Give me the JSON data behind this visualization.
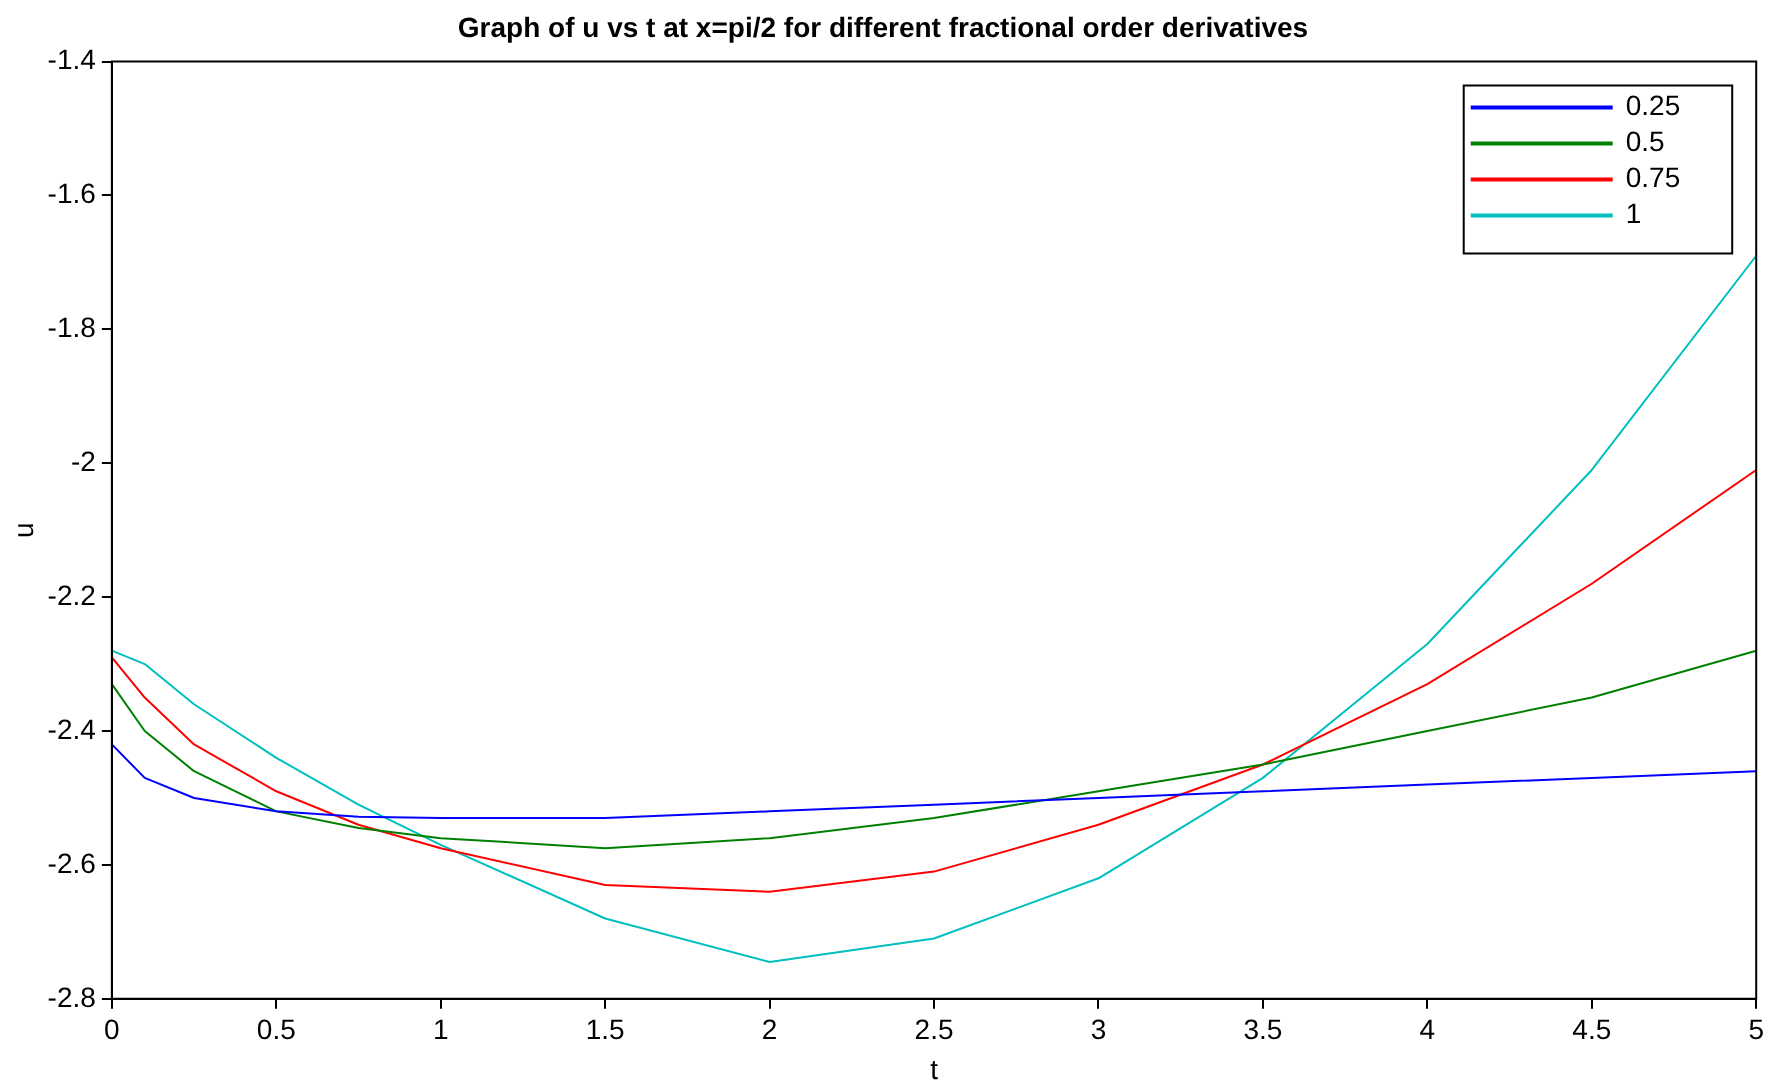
{
  "chart_data": {
    "type": "line",
    "title": "Graph of u vs t at x=pi/2 for different fractional order derivatives",
    "xlabel": "t",
    "ylabel": "u",
    "x": [
      0,
      0.1,
      0.25,
      0.5,
      0.75,
      1,
      1.5,
      2,
      2.5,
      3,
      3.5,
      4,
      4.5,
      5
    ],
    "series": [
      {
        "name": "0.25",
        "color": "#0000ff",
        "values": [
          -2.42,
          -2.47,
          -2.5,
          -2.52,
          -2.528,
          -2.53,
          -2.53,
          -2.52,
          -2.51,
          -2.5,
          -2.49,
          -2.48,
          -2.47,
          -2.46
        ]
      },
      {
        "name": "0.5",
        "color": "#008000",
        "values": [
          -2.33,
          -2.4,
          -2.46,
          -2.52,
          -2.545,
          -2.56,
          -2.575,
          -2.56,
          -2.53,
          -2.49,
          -2.45,
          -2.4,
          -2.35,
          -2.28
        ]
      },
      {
        "name": "0.75",
        "color": "#ff0000",
        "values": [
          -2.29,
          -2.35,
          -2.42,
          -2.49,
          -2.54,
          -2.575,
          -2.63,
          -2.64,
          -2.61,
          -2.54,
          -2.45,
          -2.33,
          -2.18,
          -2.01
        ]
      },
      {
        "name": "1",
        "color": "#00bfbf",
        "values": [
          -2.28,
          -2.3,
          -2.36,
          -2.44,
          -2.51,
          -2.57,
          -2.68,
          -2.745,
          -2.71,
          -2.62,
          -2.47,
          -2.27,
          -2.01,
          -1.69
        ]
      }
    ],
    "xlim": [
      0,
      5
    ],
    "xticks": [
      0,
      0.5,
      1,
      1.5,
      2,
      2.5,
      3,
      3.5,
      4,
      4.5,
      5
    ],
    "ylim": [
      -2.8,
      -1.4
    ],
    "yticks": [
      -2.8,
      -2.6,
      -2.4,
      -2.2,
      -2,
      -1.8,
      -1.6,
      -1.4
    ],
    "legend": "top right",
    "grid": false,
    "marker": "none",
    "line_style": "solid"
  }
}
